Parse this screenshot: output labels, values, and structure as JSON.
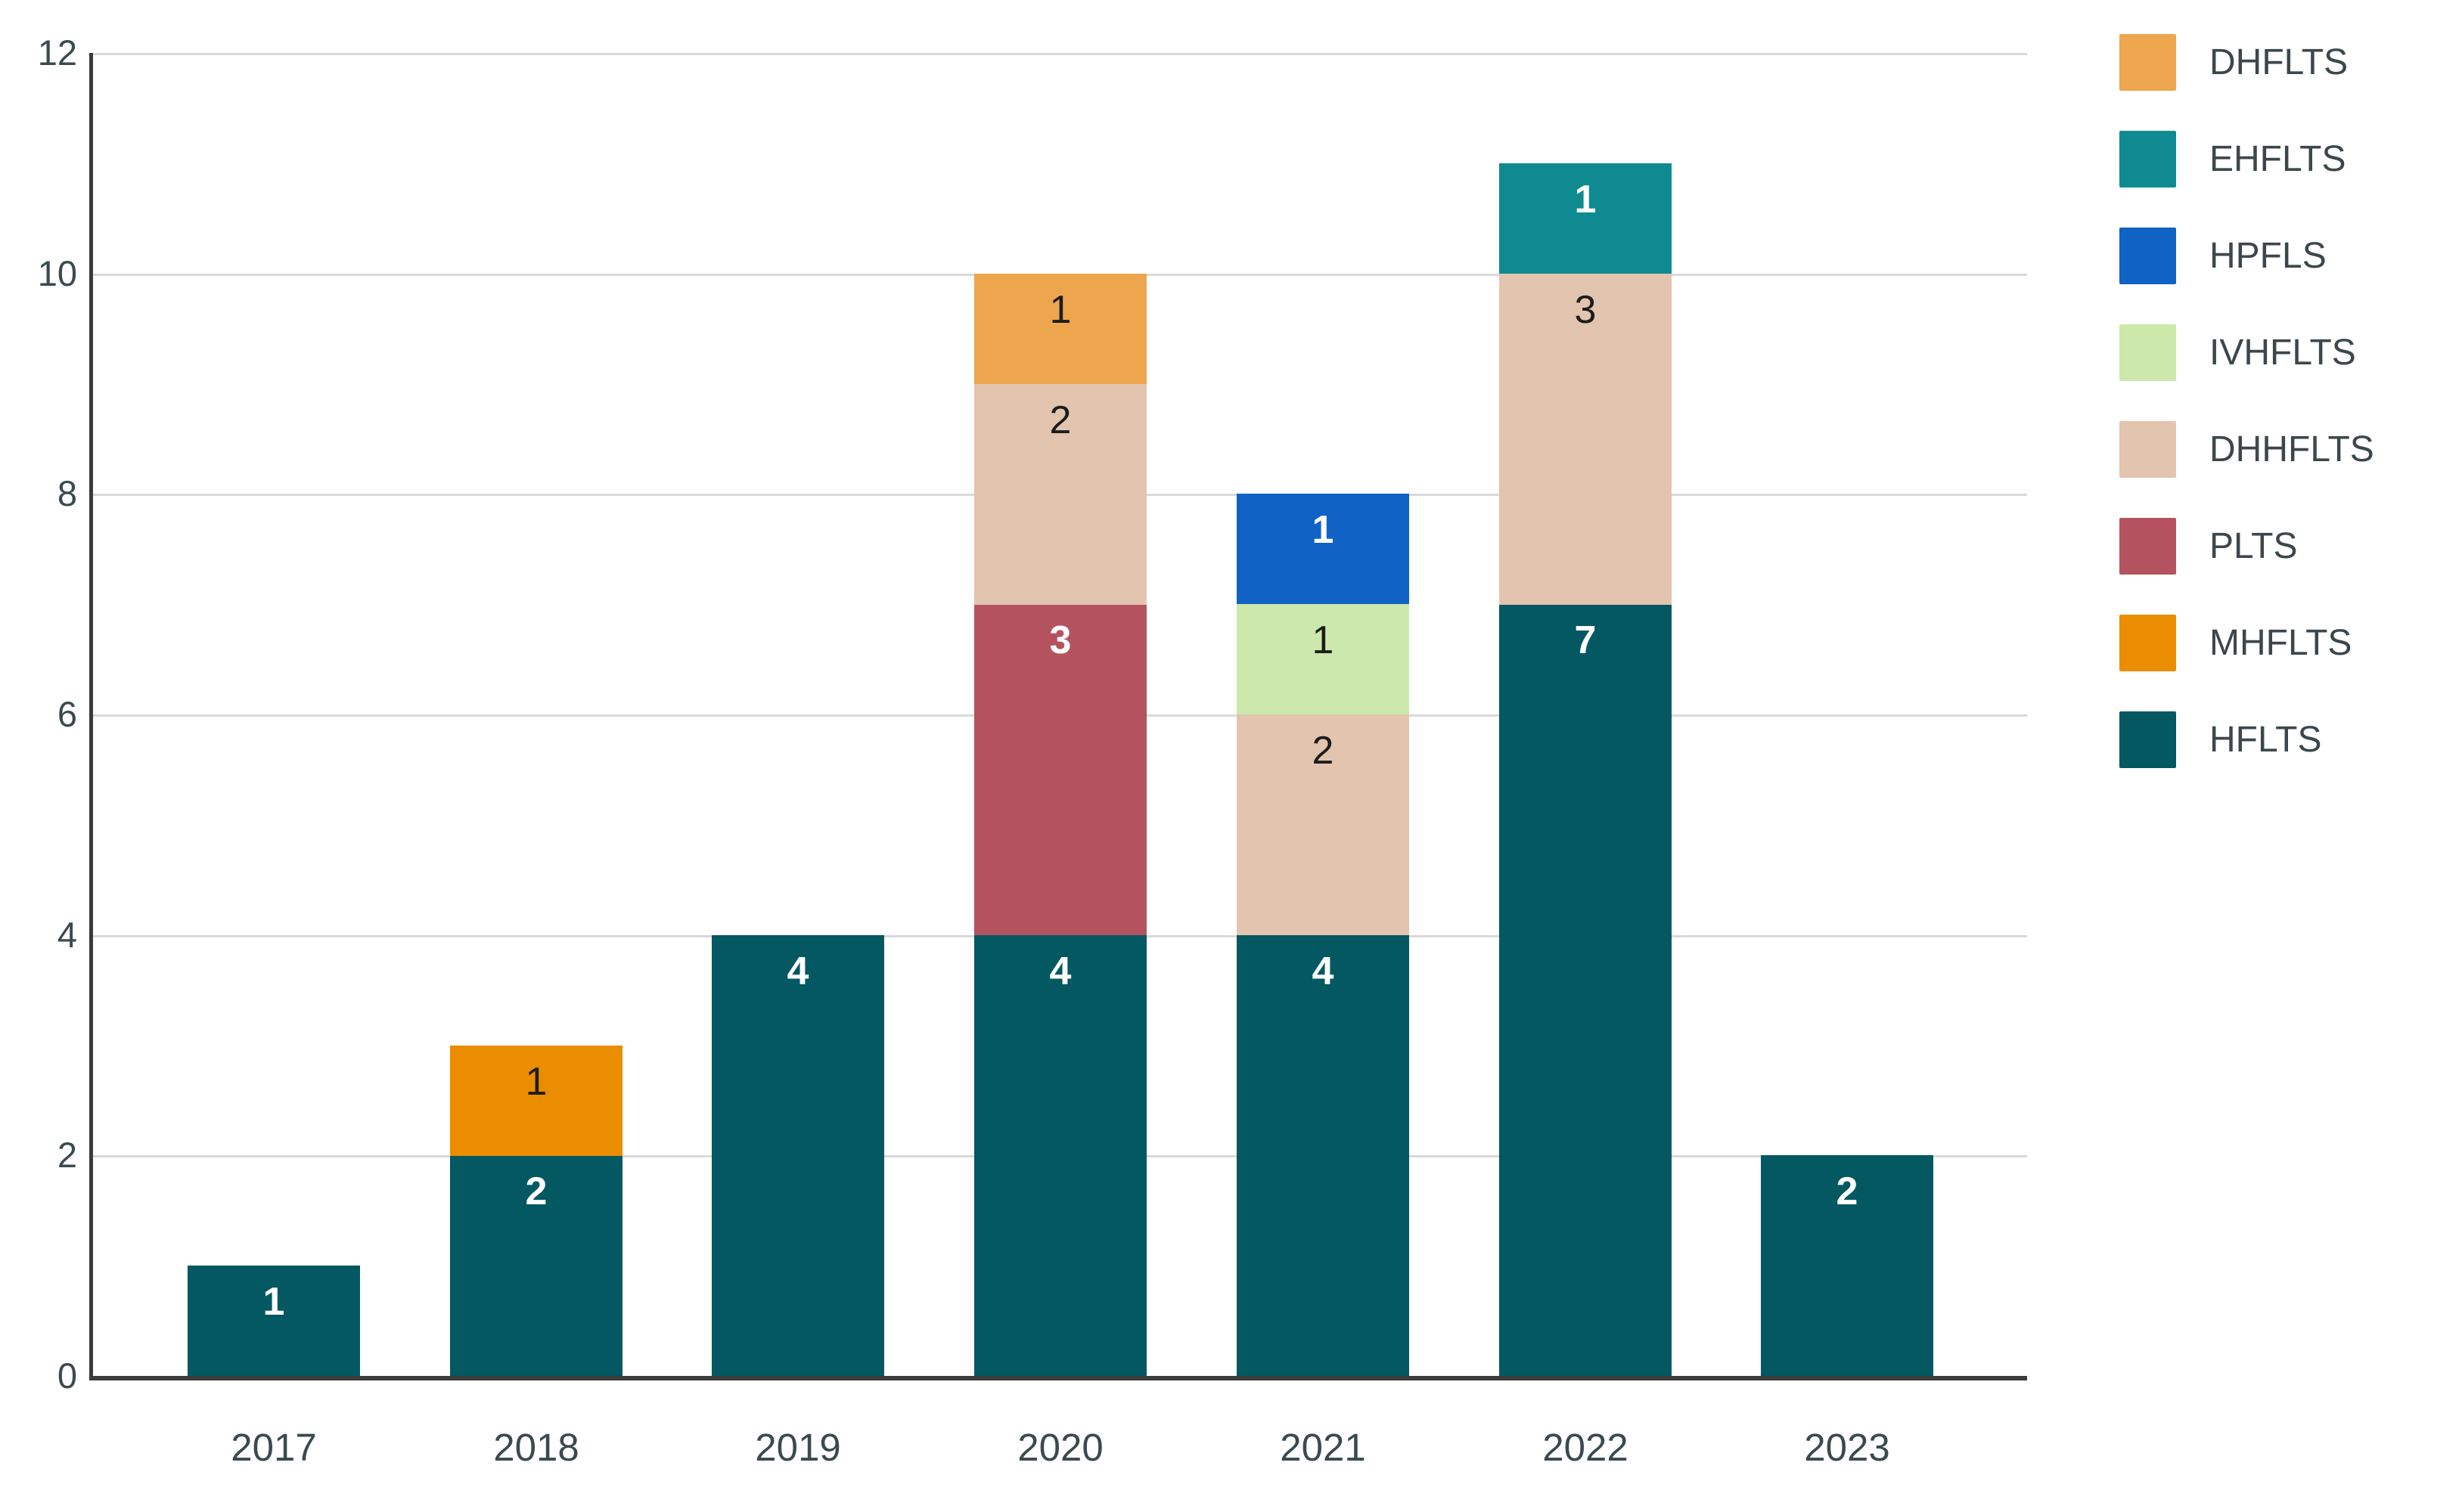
{
  "chart_data": {
    "type": "bar",
    "stacked": true,
    "title": "",
    "xlabel": "",
    "ylabel": "",
    "categories": [
      "2017",
      "2018",
      "2019",
      "2020",
      "2021",
      "2022",
      "2023"
    ],
    "series": [
      {
        "name": "DHFLTS",
        "color": "#eda64e",
        "label_style": "dark",
        "values": [
          0,
          0,
          0,
          1,
          0,
          0,
          0
        ]
      },
      {
        "name": "EHFLTS",
        "color": "#108a91",
        "label_style": "light",
        "values": [
          0,
          0,
          0,
          0,
          0,
          1,
          0
        ]
      },
      {
        "name": "HPFLS",
        "color": "#1062c5",
        "label_style": "light",
        "values": [
          0,
          0,
          0,
          0,
          1,
          0,
          0
        ]
      },
      {
        "name": "IVHFLTS",
        "color": "#cce8aa",
        "label_style": "dark",
        "values": [
          0,
          0,
          0,
          0,
          1,
          0,
          0
        ]
      },
      {
        "name": "DHHFLTS",
        "color": "#e3c4ae",
        "label_style": "dark",
        "values": [
          0,
          0,
          0,
          2,
          2,
          3,
          0
        ]
      },
      {
        "name": "PLTS",
        "color": "#b4535f",
        "label_style": "light",
        "values": [
          0,
          0,
          0,
          3,
          0,
          0,
          0
        ]
      },
      {
        "name": "MHFLTS",
        "color": "#ea8d00",
        "label_style": "dark",
        "values": [
          0,
          1,
          0,
          0,
          0,
          0,
          0
        ]
      },
      {
        "name": "HFLTS",
        "color": "#035862",
        "label_style": "light",
        "values": [
          1,
          2,
          4,
          4,
          4,
          7,
          2
        ]
      }
    ],
    "stack_order_bottom_to_top": [
      "HFLTS",
      "MHFLTS",
      "PLTS",
      "DHHFLTS",
      "IVHFLTS",
      "HPFLS",
      "EHFLTS",
      "DHFLTS"
    ],
    "totals_per_category": [
      1,
      3,
      4,
      10,
      8,
      11,
      2
    ],
    "ylim": [
      0,
      12
    ],
    "yticks": [
      "0",
      "2",
      "4",
      "6",
      "8",
      "10",
      "12"
    ],
    "grid": "horizontal-on",
    "legend_position": "right",
    "legend_order_top_to_bottom": [
      "DHFLTS",
      "EHFLTS",
      "HPFLS",
      "IVHFLTS",
      "DHHFLTS",
      "PLTS",
      "MHFLTS",
      "HFLTS"
    ]
  },
  "colors": {
    "background": "#ffffff",
    "gridline": "#d9d9d9",
    "axis_line": "#3b3b3b",
    "tick_text": "#3a4a4f",
    "legend_text": "#3d474b"
  }
}
